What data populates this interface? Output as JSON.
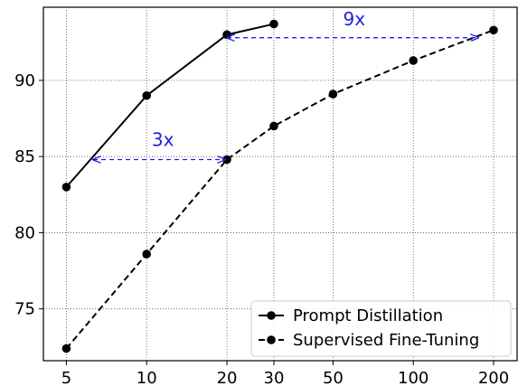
{
  "chart_data": {
    "type": "line",
    "title": "",
    "xlabel": "",
    "ylabel": "",
    "x_scale": "log",
    "xlim": [
      4.1,
      245
    ],
    "ylim": [
      71.6,
      94.8
    ],
    "x_ticks": [
      5,
      10,
      20,
      30,
      50,
      100,
      200
    ],
    "x_tick_labels": [
      "5",
      "10",
      "20",
      "30",
      "50",
      "100",
      "200"
    ],
    "y_ticks": [
      75,
      80,
      85,
      90
    ],
    "y_tick_labels": [
      "75",
      "80",
      "85",
      "90"
    ],
    "grid": true,
    "grid_style": "dotted",
    "legend_position": "bottom-right",
    "series": [
      {
        "name": "Prompt Distillation",
        "line_style": "solid",
        "color": "#000000",
        "x": [
          5,
          10,
          20,
          30
        ],
        "y": [
          83.0,
          89.0,
          93.0,
          93.7
        ]
      },
      {
        "name": "Supervised Fine-Tuning",
        "line_style": "dashed",
        "color": "#000000",
        "x": [
          5,
          10,
          20,
          30,
          50,
          100,
          200
        ],
        "y": [
          72.4,
          78.6,
          84.8,
          87.0,
          89.1,
          91.3,
          93.3
        ]
      }
    ],
    "annotations": [
      {
        "text": "3x",
        "color": "#1f1fe0",
        "arrow_from": [
          6.3,
          84.8
        ],
        "arrow_to": [
          20,
          84.8
        ],
        "label_at": [
          11.5,
          85.7
        ]
      },
      {
        "text": "9x",
        "color": "#1f1fe0",
        "arrow_from": [
          20,
          92.8
        ],
        "arrow_to": [
          178,
          92.8
        ],
        "label_at": [
          60,
          93.6
        ]
      }
    ]
  }
}
